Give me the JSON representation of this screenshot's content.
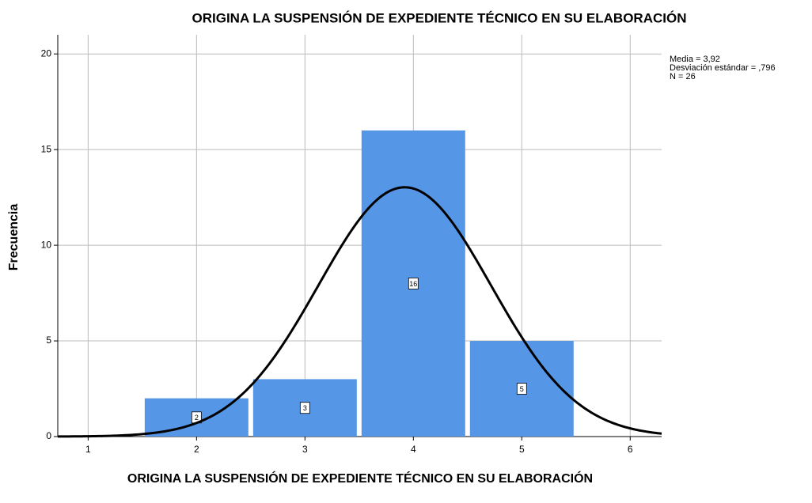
{
  "chart_data": {
    "type": "histogram",
    "title": "ORIGINA LA SUSPENSIÓN DE EXPEDIENTE TÉCNICO EN SU ELABORACIÓN",
    "xlabel": "ORIGINA LA SUSPENSIÓN DE EXPEDIENTE TÉCNICO EN SU ELABORACIÓN",
    "ylabel": "Frecuencia",
    "bins": [
      1.5,
      2.5,
      3.5,
      4.5,
      5.5
    ],
    "values": [
      2,
      3,
      16,
      5
    ],
    "color": "#5596e6",
    "xlim": [
      0.72,
      6.29
    ],
    "xticks": [
      1,
      2,
      3,
      4,
      5,
      6
    ],
    "ylim": [
      0,
      21
    ],
    "yticks": [
      0,
      5,
      10,
      15,
      20
    ],
    "grid": true,
    "normal_curve": {
      "mean": 3.92,
      "sd": 0.796,
      "n": 26
    },
    "stats_text": [
      "Media = 3,92",
      "Desviación estándar = ,796",
      "N = 26"
    ]
  }
}
